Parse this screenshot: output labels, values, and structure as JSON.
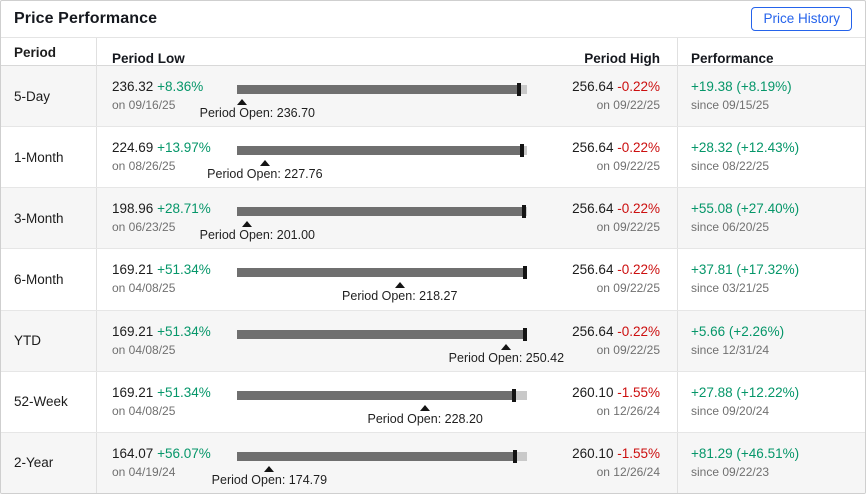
{
  "header": {
    "title": "Price Performance",
    "button_label": "Price History"
  },
  "columns": {
    "period": "Period",
    "low": "Period Low",
    "high": "Period High",
    "performance": "Performance"
  },
  "colors": {
    "positive": "#059669",
    "negative": "#cc0f0f",
    "muted": "#707070",
    "accent_blue": "#2563eb",
    "bar_fill": "#6f6f6f",
    "bar_track": "#c9c9c9",
    "tick": "#141414"
  },
  "rows": [
    {
      "period": "5-Day",
      "low_price": "236.32",
      "low_change": "+8.36%",
      "low_date": "on 09/16/25",
      "low_value": 236.32,
      "open_label": "Period Open: 236.70",
      "open_value": 236.7,
      "high_price": "256.64",
      "high_change": "-0.22%",
      "high_change_pct": -0.22,
      "high_date": "on 09/22/25",
      "high_value": 256.64,
      "performance": "+19.38 (+8.19%)",
      "performance_since": "since 09/15/25"
    },
    {
      "period": "1-Month",
      "low_price": "224.69",
      "low_change": "+13.97%",
      "low_date": "on 08/26/25",
      "low_value": 224.69,
      "open_label": "Period Open: 227.76",
      "open_value": 227.76,
      "high_price": "256.64",
      "high_change": "-0.22%",
      "high_change_pct": -0.22,
      "high_date": "on 09/22/25",
      "high_value": 256.64,
      "performance": "+28.32 (+12.43%)",
      "performance_since": "since 08/22/25"
    },
    {
      "period": "3-Month",
      "low_price": "198.96",
      "low_change": "+28.71%",
      "low_date": "on 06/23/25",
      "low_value": 198.96,
      "open_label": "Period Open: 201.00",
      "open_value": 201.0,
      "high_price": "256.64",
      "high_change": "-0.22%",
      "high_change_pct": -0.22,
      "high_date": "on 09/22/25",
      "high_value": 256.64,
      "performance": "+55.08 (+27.40%)",
      "performance_since": "since 06/20/25"
    },
    {
      "period": "6-Month",
      "low_price": "169.21",
      "low_change": "+51.34%",
      "low_date": "on 04/08/25",
      "low_value": 169.21,
      "open_label": "Period Open: 218.27",
      "open_value": 218.27,
      "high_price": "256.64",
      "high_change": "-0.22%",
      "high_change_pct": -0.22,
      "high_date": "on 09/22/25",
      "high_value": 256.64,
      "performance": "+37.81 (+17.32%)",
      "performance_since": "since 03/21/25"
    },
    {
      "period": "YTD",
      "low_price": "169.21",
      "low_change": "+51.34%",
      "low_date": "on 04/08/25",
      "low_value": 169.21,
      "open_label": "Period Open: 250.42",
      "open_value": 250.42,
      "high_price": "256.64",
      "high_change": "-0.22%",
      "high_change_pct": -0.22,
      "high_date": "on 09/22/25",
      "high_value": 256.64,
      "performance": "+5.66 (+2.26%)",
      "performance_since": "since 12/31/24"
    },
    {
      "period": "52-Week",
      "low_price": "169.21",
      "low_change": "+51.34%",
      "low_date": "on 04/08/25",
      "low_value": 169.21,
      "open_label": "Period Open: 228.20",
      "open_value": 228.2,
      "high_price": "260.10",
      "high_change": "-1.55%",
      "high_change_pct": -1.55,
      "high_date": "on 12/26/24",
      "high_value": 260.1,
      "performance": "+27.88 (+12.22%)",
      "performance_since": "since 09/20/24"
    },
    {
      "period": "2-Year",
      "low_price": "164.07",
      "low_change": "+56.07%",
      "low_date": "on 04/19/24",
      "low_value": 164.07,
      "open_label": "Period Open: 174.79",
      "open_value": 174.79,
      "high_price": "260.10",
      "high_change": "-1.55%",
      "high_change_pct": -1.55,
      "high_date": "on 12/26/24",
      "high_value": 260.1,
      "performance": "+81.29 (+46.51%)",
      "performance_since": "since 09/22/23"
    }
  ]
}
